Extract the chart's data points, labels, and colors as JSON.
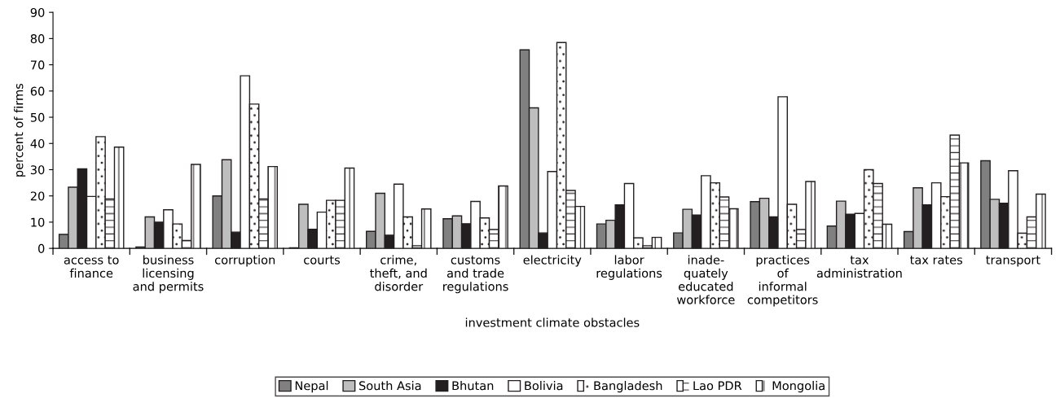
{
  "chart_data": {
    "type": "bar",
    "xlabel": "investment climate obstacles",
    "ylabel": "percent of firms",
    "categories": [
      "access to\nfinance",
      "business\nlicensing\nand permits",
      "corruption",
      "courts",
      "crime,\ntheft, and\ndisorder",
      "customs\nand trade\nregulations",
      "electricity",
      "labor\nregulations",
      "inade-\nquately\neducated\nworkforce",
      "practices\nof\ninformal\ncompetitors",
      "tax\nadministration",
      "tax rates",
      "transport"
    ],
    "series": [
      {
        "name": "Nepal",
        "color": "#808080",
        "values": [
          5.3,
          0.5,
          20,
          0.2,
          6.5,
          11.3,
          75.7,
          9.3,
          5.9,
          17.8,
          8.5,
          6.4,
          33.4
        ]
      },
      {
        "name": "South Asia",
        "color": "#bebebe",
        "values": [
          23.3,
          12,
          33.8,
          16.8,
          21,
          12.4,
          53.6,
          10.7,
          14.9,
          19.1,
          18,
          23.1,
          18.7
        ]
      },
      {
        "name": "Bhutan",
        "color": "#231f20",
        "values": [
          30.3,
          10,
          6.2,
          7.3,
          5,
          9.4,
          5.9,
          16.6,
          12.7,
          12,
          13,
          16.6,
          17.2
        ]
      },
      {
        "name": "Bolivia",
        "color": "#ffffff",
        "values": [
          19.8,
          14.7,
          65.8,
          13.8,
          24.5,
          17.9,
          29.3,
          24.7,
          27.7,
          57.8,
          13.3,
          25,
          29.6
        ]
      },
      {
        "name": "Bangladesh",
        "color": "#ffffff",
        "values": [
          42.6,
          9.3,
          55,
          18.3,
          12,
          11.6,
          78.5,
          4,
          25,
          16.8,
          30,
          19.7,
          5.8
        ]
      },
      {
        "name": "Lao PDR",
        "color": "#ffffff",
        "values": [
          18.8,
          3,
          18.8,
          18.3,
          1,
          7.2,
          22.1,
          1,
          19.6,
          7.2,
          24.7,
          43.2,
          12
        ]
      },
      {
        "name": "Mongolia",
        "color": "#ffffff",
        "values": [
          38.6,
          32,
          31.2,
          30.6,
          15,
          23.8,
          16,
          4.2,
          15.1,
          25.5,
          9.2,
          32.6,
          20.7
        ]
      }
    ],
    "ylim": [
      0,
      90
    ],
    "yticks": [
      0,
      10,
      20,
      30,
      40,
      50,
      60,
      70,
      80,
      90
    ],
    "grid": false,
    "legend": "bottom"
  }
}
